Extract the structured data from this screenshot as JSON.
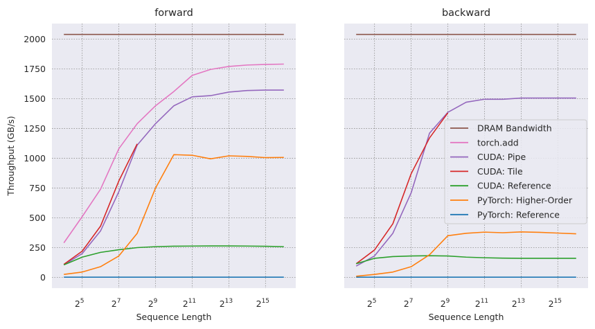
{
  "chart_data": [
    {
      "type": "line",
      "title": "forward",
      "xlabel": "Sequence Length",
      "ylabel": "Throughput (GB/s)",
      "x_scale": "log2",
      "x": [
        16,
        32,
        64,
        128,
        256,
        512,
        1024,
        2048,
        4096,
        8192,
        16384,
        32768,
        65536
      ],
      "x_ticks": [
        32,
        128,
        512,
        2048,
        8192,
        32768
      ],
      "x_tick_base": "2",
      "x_tick_exponents": [
        "5",
        "7",
        "9",
        "11",
        "13",
        "15"
      ],
      "y_ticks": [
        "0",
        "250",
        "500",
        "750",
        "1000",
        "1250",
        "1500",
        "1750",
        "2000"
      ],
      "ylim": [
        -90,
        2130
      ],
      "grid": true,
      "series": [
        {
          "name": "DRAM Bandwidth",
          "color": "#8c564b",
          "values": [
            2039,
            2039,
            2039,
            2039,
            2039,
            2039,
            2039,
            2039,
            2039,
            2039,
            2039,
            2039,
            2039
          ]
        },
        {
          "name": "torch.add",
          "color": "#e377c2",
          "values": [
            290,
            510,
            740,
            1080,
            1290,
            1440,
            1560,
            1695,
            1745,
            1770,
            1782,
            1787,
            1790
          ]
        },
        {
          "name": "CUDA: Pipe",
          "color": "#9467bd",
          "values": [
            105,
            200,
            390,
            720,
            1110,
            1290,
            1440,
            1515,
            1525,
            1555,
            1568,
            1572,
            1572
          ]
        },
        {
          "name": "CUDA: Tile",
          "color": "#d62728",
          "values": [
            110,
            220,
            430,
            810,
            1120,
            null,
            null,
            null,
            null,
            null,
            null,
            null,
            null
          ]
        },
        {
          "name": "CUDA: Reference",
          "color": "#2ca02c",
          "values": [
            105,
            170,
            210,
            232,
            250,
            258,
            262,
            263,
            264,
            264,
            263,
            261,
            258
          ]
        },
        {
          "name": "PyTorch: Higher-Order",
          "color": "#ff7f0e",
          "values": [
            25,
            45,
            90,
            180,
            370,
            750,
            1030,
            1025,
            995,
            1020,
            1015,
            1005,
            1007
          ]
        },
        {
          "name": "PyTorch: Reference",
          "color": "#1f77b4",
          "values": [
            2,
            2,
            2,
            2,
            2,
            2,
            2,
            2,
            2,
            2,
            2,
            2,
            2
          ]
        }
      ]
    },
    {
      "type": "line",
      "title": "backward",
      "xlabel": "Sequence Length",
      "ylabel": "",
      "x_scale": "log2",
      "x": [
        16,
        32,
        64,
        128,
        256,
        512,
        1024,
        2048,
        4096,
        8192,
        16384,
        32768,
        65536
      ],
      "x_ticks": [
        32,
        128,
        512,
        2048,
        8192,
        32768
      ],
      "x_tick_base": "2",
      "x_tick_exponents": [
        "5",
        "7",
        "9",
        "11",
        "13",
        "15"
      ],
      "ylim": [
        -90,
        2130
      ],
      "grid": true,
      "legend": "center-right",
      "series": [
        {
          "name": "DRAM Bandwidth",
          "color": "#8c564b",
          "values": [
            2039,
            2039,
            2039,
            2039,
            2039,
            2039,
            2039,
            2039,
            2039,
            2039,
            2039,
            2039,
            2039
          ]
        },
        {
          "name": "torch.add",
          "color": "#e377c2",
          "values": [
            null,
            null,
            null,
            null,
            null,
            null,
            null,
            null,
            null,
            null,
            null,
            null,
            null
          ]
        },
        {
          "name": "CUDA: Pipe",
          "color": "#9467bd",
          "values": [
            95,
            180,
            370,
            710,
            1210,
            1385,
            1470,
            1495,
            1495,
            1505,
            1505,
            1505,
            1505
          ]
        },
        {
          "name": "CUDA: Tile",
          "color": "#d62728",
          "values": [
            115,
            230,
            450,
            870,
            1170,
            1380,
            null,
            null,
            null,
            null,
            null,
            null,
            null
          ]
        },
        {
          "name": "CUDA: Reference",
          "color": "#2ca02c",
          "values": [
            115,
            160,
            175,
            180,
            182,
            180,
            170,
            165,
            162,
            160,
            160,
            160,
            160
          ]
        },
        {
          "name": "PyTorch: Higher-Order",
          "color": "#ff7f0e",
          "values": [
            10,
            25,
            45,
            90,
            190,
            350,
            370,
            380,
            375,
            382,
            378,
            372,
            366
          ]
        },
        {
          "name": "PyTorch: Reference",
          "color": "#1f77b4",
          "values": [
            2,
            2,
            2,
            2,
            2,
            2,
            2,
            2,
            2,
            2,
            2,
            2,
            2
          ]
        }
      ]
    }
  ]
}
